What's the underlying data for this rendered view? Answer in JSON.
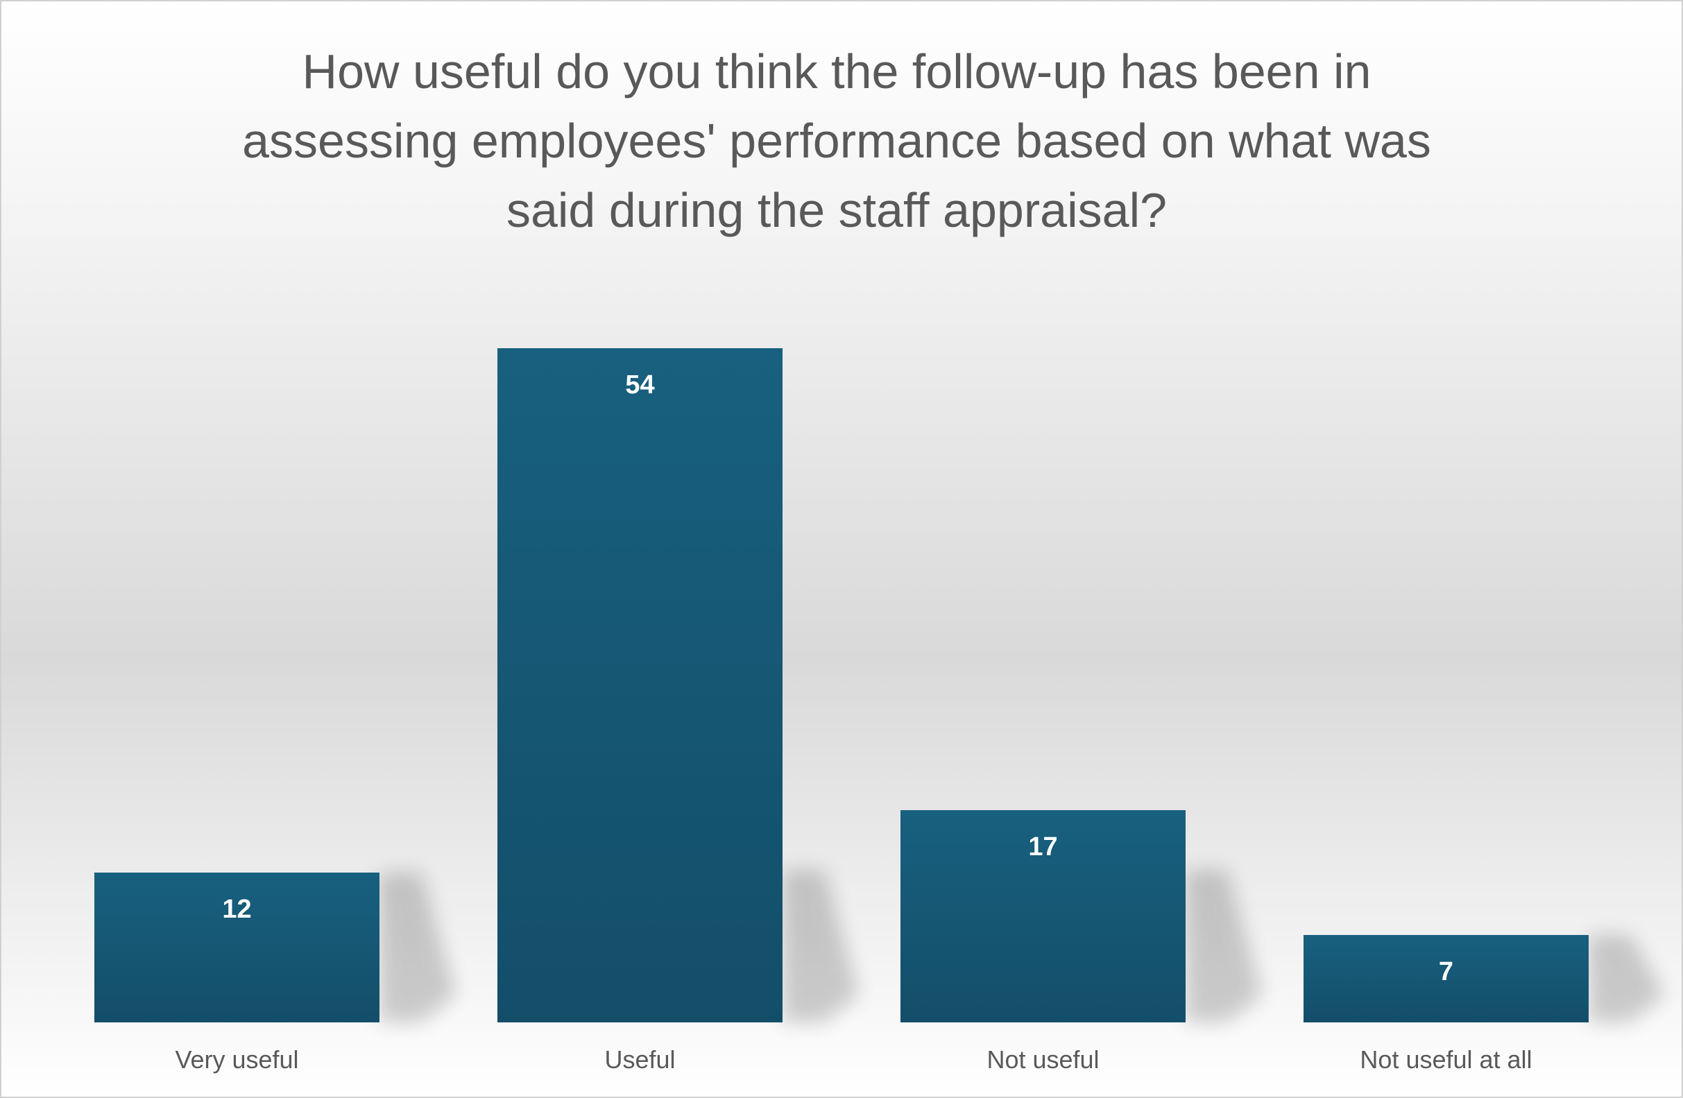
{
  "chart_data": {
    "type": "bar",
    "title_lines": [
      "How useful do you think the follow-up has been in",
      "assessing employees' performance based on what was",
      "said during the staff appraisal?"
    ],
    "categories": [
      "Very useful",
      "Useful",
      "Not useful",
      "Not useful at all"
    ],
    "values": [
      12,
      54,
      17,
      7
    ],
    "data_labels": [
      "12",
      "54",
      "17",
      "7"
    ],
    "xlabel": "",
    "ylabel": "",
    "ylim": [
      0,
      60
    ],
    "grid": false,
    "legend": "none",
    "colors": {
      "bar_top": "#18607f",
      "bar_bottom": "#134e69",
      "title": "#595959",
      "category_label": "#595959",
      "data_label_inside": "#ffffff",
      "data_label_outside": "#000000"
    }
  }
}
